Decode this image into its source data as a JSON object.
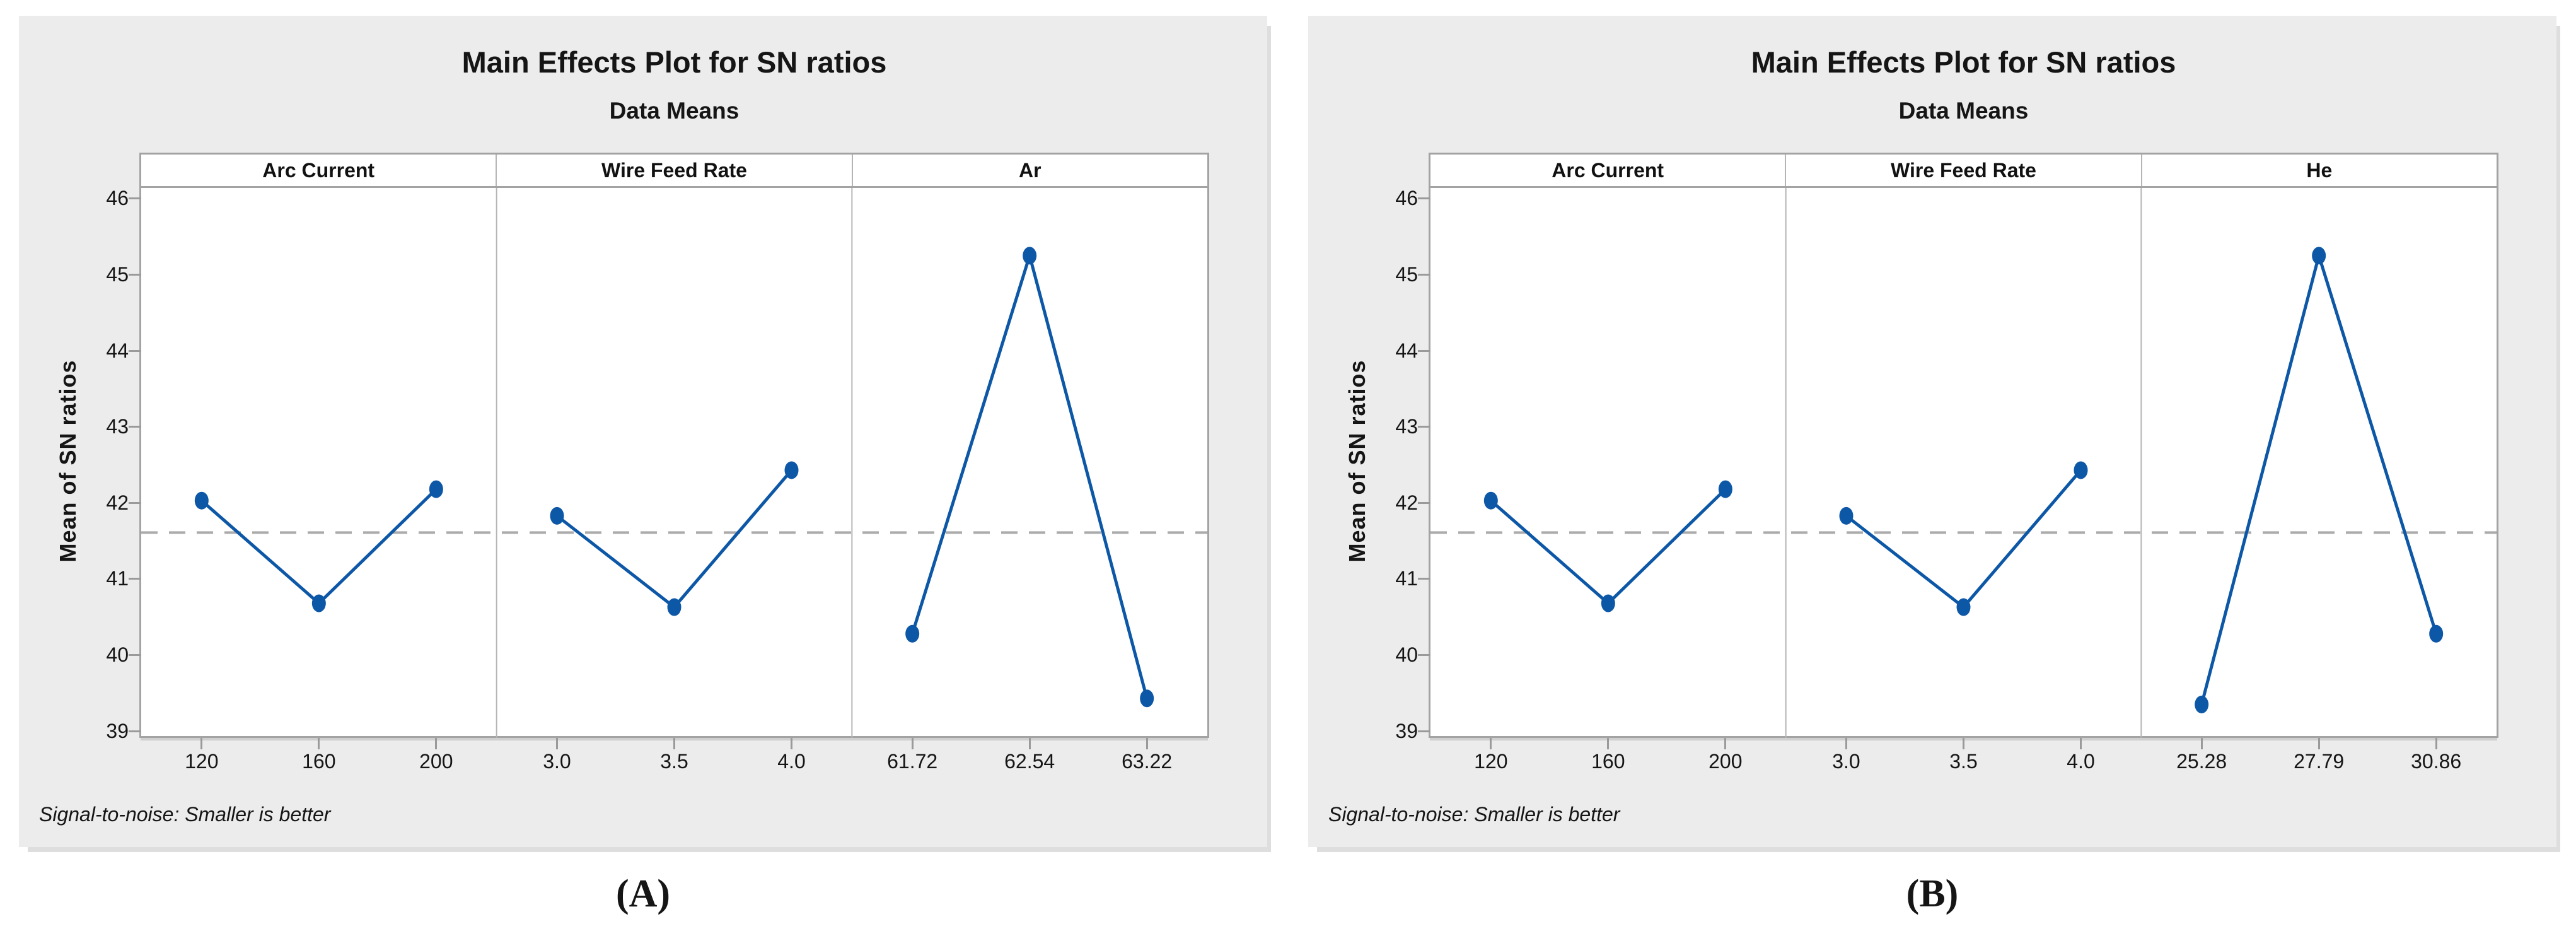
{
  "colors": {
    "series_blue": "#0d57a7",
    "mean_line_gray": "#ababab",
    "card_background": "#ececec",
    "plot_border_gray": "#a3a3a3",
    "panel_divider_gray": "#b5b5b5",
    "tick_gray": "#9a9a9a"
  },
  "chart_data": [
    {
      "id": "A",
      "type": "line",
      "title": "Main Effects Plot for SN ratios",
      "subtitle": "Data Means",
      "ylabel": "Mean of SN ratios",
      "footnote": "Signal-to-noise: Smaller is better",
      "caption": "(A)",
      "y_ticks": [
        46,
        45,
        44,
        43,
        42,
        41,
        40,
        39
      ],
      "ylim": [
        38.93,
        46.16
      ],
      "grand_mean": 41.63,
      "grid": false,
      "legend_position": "none",
      "panels": [
        {
          "label": "Arc Current",
          "categories": [
            "120",
            "160",
            "200"
          ],
          "values": [
            42.05,
            40.7,
            42.2
          ]
        },
        {
          "label": "Wire Feed Rate",
          "categories": [
            "3.0",
            "3.5",
            "4.0"
          ],
          "values": [
            41.85,
            40.65,
            42.45
          ]
        },
        {
          "label": "Ar",
          "categories": [
            "61.72",
            "62.54",
            "63.22"
          ],
          "values": [
            40.3,
            45.27,
            39.45
          ]
        }
      ]
    },
    {
      "id": "B",
      "type": "line",
      "title": "Main Effects Plot for SN ratios",
      "subtitle": "Data Means",
      "ylabel": "Mean of SN ratios",
      "footnote": "Signal-to-noise: Smaller is better",
      "caption": "(B)",
      "y_ticks": [
        46,
        45,
        44,
        43,
        42,
        41,
        40,
        39
      ],
      "ylim": [
        38.93,
        46.16
      ],
      "grand_mean": 41.63,
      "grid": false,
      "legend_position": "none",
      "panels": [
        {
          "label": "Arc Current",
          "categories": [
            "120",
            "160",
            "200"
          ],
          "values": [
            42.05,
            40.7,
            42.2
          ]
        },
        {
          "label": "Wire Feed Rate",
          "categories": [
            "3.0",
            "3.5",
            "4.0"
          ],
          "values": [
            41.85,
            40.65,
            42.45
          ]
        },
        {
          "label": "He",
          "categories": [
            "25.28",
            "27.79",
            "30.86"
          ],
          "values": [
            39.37,
            45.27,
            40.3
          ]
        }
      ]
    }
  ]
}
